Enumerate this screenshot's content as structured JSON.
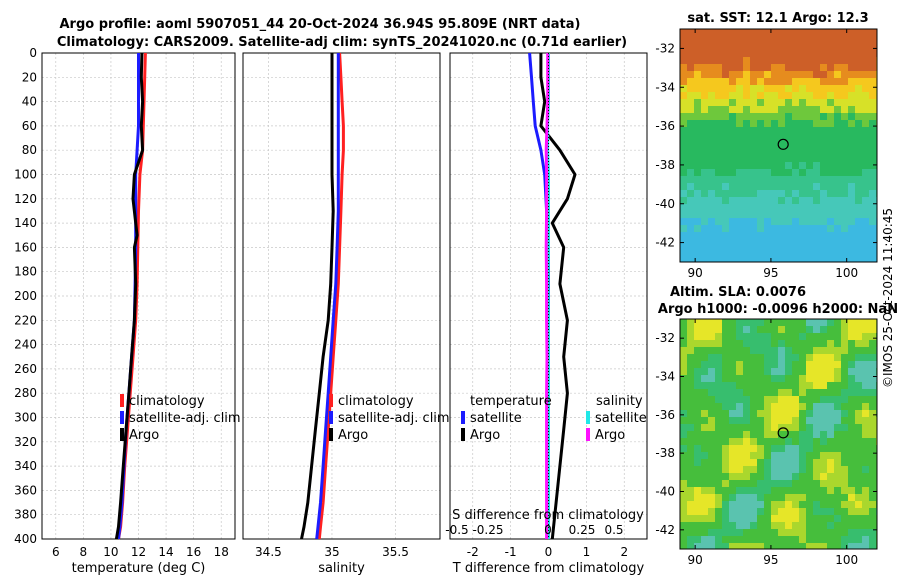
{
  "header": {
    "line1": "Argo profile: aoml 5907051_44 20-Oct-2024 36.94S 95.809E (NRT data)",
    "line2": "Climatology: CARS2009. Satellite-adj clim: synTS_20241020.nc (0.71d earlier)"
  },
  "colors": {
    "climatology": "#ff2020",
    "satellite": "#1c1cff",
    "argo": "#000000",
    "salinity_satellite": "#20e8e8",
    "salinity_argo": "#ff10ff",
    "grid": "#c8c8c8"
  },
  "depth_axis": {
    "ylim": [
      0,
      400
    ],
    "ticks": [
      "0",
      "20",
      "40",
      "60",
      "80",
      "100",
      "120",
      "140",
      "160",
      "180",
      "200",
      "220",
      "240",
      "260",
      "280",
      "300",
      "320",
      "340",
      "360",
      "380",
      "400"
    ]
  },
  "chart_data": [
    {
      "type": "line",
      "name": "temperature",
      "xlabel": "temperature (deg C)",
      "xlim": [
        5,
        19
      ],
      "xticks": [
        6,
        8,
        10,
        12,
        14,
        16,
        18
      ],
      "xtick_labels": [
        "6",
        "8",
        "10",
        "12",
        "14",
        "16",
        "18"
      ],
      "ylim": [
        400,
        0
      ],
      "legend": [
        "climatology",
        "satellite-adj. clim",
        "Argo"
      ],
      "series": [
        {
          "name": "climatology",
          "color": "#ff2020",
          "x": [
            12.5,
            12.45,
            12.4,
            12.35,
            12.3,
            12.1,
            12.0,
            11.95,
            11.9,
            11.8,
            11.6,
            11.4,
            11.2,
            11.0,
            10.85,
            10.7,
            10.55
          ],
          "y": [
            0,
            20,
            40,
            60,
            80,
            100,
            130,
            160,
            190,
            220,
            250,
            280,
            310,
            340,
            370,
            390,
            400
          ]
        },
        {
          "name": "satellite-adj. clim",
          "color": "#1c1cff",
          "x": [
            12.0,
            12.0,
            12.0,
            12.0,
            11.9,
            11.8,
            11.8,
            11.8,
            11.75,
            11.7,
            11.5,
            11.3,
            11.1,
            10.95,
            10.8,
            10.65,
            10.55
          ],
          "y": [
            0,
            20,
            40,
            60,
            80,
            100,
            130,
            160,
            190,
            220,
            250,
            280,
            310,
            340,
            370,
            390,
            400
          ]
        },
        {
          "name": "Argo",
          "color": "#000000",
          "x": [
            12.25,
            12.2,
            12.3,
            12.2,
            12.3,
            11.7,
            11.6,
            11.9,
            11.7,
            11.8,
            11.7,
            11.5,
            11.3,
            11.1,
            10.9,
            10.7,
            10.55,
            10.4
          ],
          "y": [
            0,
            20,
            40,
            60,
            80,
            100,
            120,
            150,
            160,
            190,
            220,
            250,
            280,
            310,
            340,
            370,
            390,
            400
          ]
        }
      ]
    },
    {
      "type": "line",
      "name": "salinity",
      "xlabel": "salinity",
      "xlim": [
        34.3,
        35.85
      ],
      "xticks": [
        34.5,
        35,
        35.5
      ],
      "xtick_labels": [
        "34.5",
        "35",
        "35.5"
      ],
      "ylim": [
        400,
        0
      ],
      "legend": [
        "climatology",
        "satellite-adj. clim",
        "Argo"
      ],
      "series": [
        {
          "name": "climatology",
          "color": "#ff2020",
          "x": [
            35.06,
            35.07,
            35.08,
            35.09,
            35.09,
            35.08,
            35.07,
            35.06,
            35.05,
            35.03,
            35.01,
            34.99,
            34.97,
            34.95,
            34.93,
            34.91,
            34.9
          ],
          "y": [
            0,
            20,
            40,
            60,
            80,
            100,
            130,
            160,
            190,
            220,
            250,
            280,
            310,
            340,
            370,
            390,
            400
          ]
        },
        {
          "name": "satellite-adj. clim",
          "color": "#1c1cff",
          "x": [
            35.05,
            35.05,
            35.05,
            35.05,
            35.05,
            35.05,
            35.05,
            35.04,
            35.03,
            35.01,
            34.99,
            34.97,
            34.95,
            34.93,
            34.91,
            34.89,
            34.88
          ],
          "y": [
            0,
            20,
            40,
            60,
            80,
            100,
            130,
            160,
            190,
            220,
            250,
            280,
            310,
            340,
            370,
            390,
            400
          ]
        },
        {
          "name": "Argo",
          "color": "#000000",
          "x": [
            35.0,
            35.0,
            35.0,
            35.0,
            35.0,
            35.0,
            35.01,
            35.0,
            34.99,
            34.97,
            34.93,
            34.9,
            34.87,
            34.84,
            34.81,
            34.78,
            34.76
          ],
          "y": [
            0,
            20,
            40,
            60,
            80,
            100,
            130,
            160,
            190,
            220,
            250,
            280,
            310,
            340,
            370,
            390,
            400
          ]
        }
      ]
    },
    {
      "type": "line",
      "name": "difference",
      "xlabel": "T difference from climatology",
      "xlim": [
        -2.6,
        2.6
      ],
      "xticks": [
        -2,
        -1,
        0,
        1,
        2
      ],
      "xtick_labels": [
        "-2",
        "-1",
        "0",
        "1",
        "2"
      ],
      "top_xlabel": "S difference from climatology",
      "top_xtick_labels": [
        "-0.5",
        "-0.25",
        "0",
        "0.25",
        "0.5"
      ],
      "ylim": [
        400,
        0
      ],
      "legend": {
        "temperature": [
          "satellite",
          "Argo"
        ],
        "salinity": [
          "satellite",
          "Argo"
        ]
      },
      "legend_titles": [
        "temperature",
        "salinity"
      ],
      "series": [
        {
          "name": "temperature satellite",
          "color": "#1c1cff",
          "x": [
            -0.5,
            -0.45,
            -0.4,
            -0.35,
            -0.2,
            -0.1,
            -0.05,
            0,
            0,
            0,
            0,
            0,
            0,
            0,
            0,
            0,
            0
          ],
          "y": [
            0,
            20,
            40,
            60,
            80,
            100,
            130,
            160,
            190,
            220,
            250,
            280,
            310,
            340,
            370,
            390,
            400
          ]
        },
        {
          "name": "temperature Argo",
          "color": "#000000",
          "x": [
            -0.2,
            -0.2,
            -0.1,
            -0.2,
            0.3,
            0.7,
            0.5,
            0.1,
            0.4,
            0.3,
            0.5,
            0.4,
            0.5,
            0.4,
            0.3,
            0.2,
            0.1
          ],
          "y": [
            0,
            20,
            40,
            60,
            80,
            100,
            120,
            140,
            160,
            190,
            220,
            250,
            280,
            310,
            340,
            370,
            400
          ]
        },
        {
          "name": "salinity satellite",
          "color": "#20e8e8",
          "x": [
            0.0,
            0.0,
            0.0,
            -0.02,
            -0.02,
            0.0,
            0.0,
            0.0,
            -0.01,
            0.0,
            0.0,
            0.0,
            0.0,
            0.0,
            0.0,
            0.0,
            0.0
          ],
          "y": [
            0,
            20,
            40,
            60,
            80,
            100,
            130,
            160,
            190,
            220,
            250,
            280,
            310,
            340,
            370,
            390,
            400
          ]
        },
        {
          "name": "salinity Argo",
          "color": "#ff10ff",
          "x": [
            -0.02,
            -0.02,
            -0.02,
            -0.04,
            -0.06,
            -0.05,
            -0.05,
            -0.06,
            -0.05,
            -0.05,
            -0.04,
            -0.05,
            -0.05,
            -0.05,
            -0.05,
            -0.05,
            -0.05
          ],
          "y": [
            0,
            20,
            40,
            60,
            80,
            100,
            130,
            160,
            190,
            220,
            250,
            280,
            310,
            340,
            370,
            390,
            400
          ]
        }
      ]
    },
    {
      "type": "heatmap",
      "name": "sst_map",
      "title": "sat. SST: 12.1 Argo: 12.3",
      "xlim": [
        89,
        102
      ],
      "ylim": [
        -43,
        -31
      ],
      "xticks": [
        90,
        95,
        100
      ],
      "xtick_labels": [
        "90",
        "95",
        "100"
      ],
      "yticks": [
        -32,
        -34,
        -36,
        -38,
        -40,
        -42
      ],
      "ytick_labels": [
        "-32",
        "-34",
        "-36",
        "-38",
        "-40",
        "-42"
      ],
      "marker": {
        "lon": 95.809,
        "lat": -36.94
      }
    },
    {
      "type": "heatmap",
      "name": "sla_map",
      "title_line1": "Altim. SLA: 0.0076",
      "title_line2": "Argo h1000: -0.0096 h2000: NaN",
      "xlim": [
        89,
        102
      ],
      "ylim": [
        -43,
        -31
      ],
      "xticks": [
        90,
        95,
        100
      ],
      "xtick_labels": [
        "90",
        "95",
        "100"
      ],
      "yticks": [
        -32,
        -34,
        -36,
        -38,
        -40,
        -42
      ],
      "ytick_labels": [
        "-32",
        "-34",
        "-36",
        "-38",
        "-40",
        "-42"
      ],
      "marker": {
        "lon": 95.809,
        "lat": -36.94
      }
    }
  ],
  "watermark": "©IMOS 25-Oct-2024 11:40:45"
}
